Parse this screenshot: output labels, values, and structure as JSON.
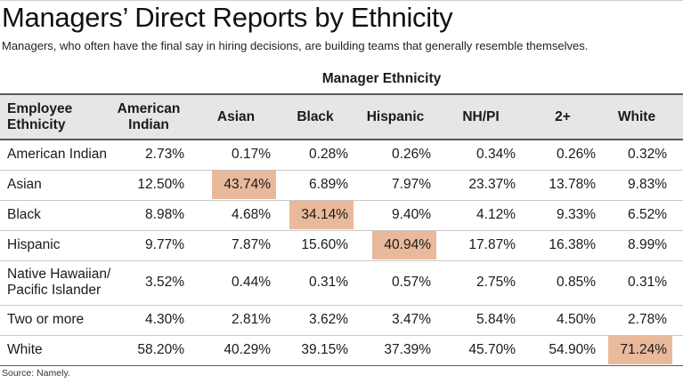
{
  "title": "Managers’ Direct Reports by Ethnicity",
  "subtitle": "Managers, who often have the final say in hiring decisions, are building teams that generally resemble themselves.",
  "source": "Source: Namely.",
  "highlight_color": "#e9b99b",
  "header_color": "#e6e6e6",
  "chart_data": {
    "type": "table",
    "column_group_label": "Manager Ethnicity",
    "row_header_label": [
      "Employee",
      "Ethnicity"
    ],
    "columns": [
      [
        "American",
        "Indian"
      ],
      [
        "Asian"
      ],
      [
        "Black"
      ],
      [
        "Hispanic"
      ],
      [
        "NH/PI"
      ],
      [
        "2+"
      ],
      [
        "White"
      ]
    ],
    "rows": [
      {
        "label": [
          "American Indian"
        ],
        "values": [
          "2.73%",
          "0.17%",
          "0.28%",
          "0.26%",
          "0.34%",
          "0.26%",
          "0.32%"
        ]
      },
      {
        "label": [
          "Asian"
        ],
        "values": [
          "12.50%",
          "43.74%",
          "6.89%",
          "7.97%",
          "23.37%",
          "13.78%",
          "9.83%"
        ],
        "highlight": 1
      },
      {
        "label": [
          "Black"
        ],
        "values": [
          "8.98%",
          "4.68%",
          "34.14%",
          "9.40%",
          "4.12%",
          "9.33%",
          "6.52%"
        ],
        "highlight": 2
      },
      {
        "label": [
          "Hispanic"
        ],
        "values": [
          "9.77%",
          "7.87%",
          "15.60%",
          "40.94%",
          "17.87%",
          "16.38%",
          "8.99%"
        ],
        "highlight": 3
      },
      {
        "label": [
          "Native Hawaiian/",
          "Pacific Islander"
        ],
        "values": [
          "3.52%",
          "0.44%",
          "0.31%",
          "0.57%",
          "2.75%",
          "0.85%",
          "0.31%"
        ]
      },
      {
        "label": [
          "Two or more"
        ],
        "values": [
          "4.30%",
          "2.81%",
          "3.62%",
          "3.47%",
          "5.84%",
          "4.50%",
          "2.78%"
        ]
      },
      {
        "label": [
          "White"
        ],
        "values": [
          "58.20%",
          "40.29%",
          "39.15%",
          "37.39%",
          "45.70%",
          "54.90%",
          "71.24%"
        ],
        "highlight": 6
      }
    ]
  }
}
